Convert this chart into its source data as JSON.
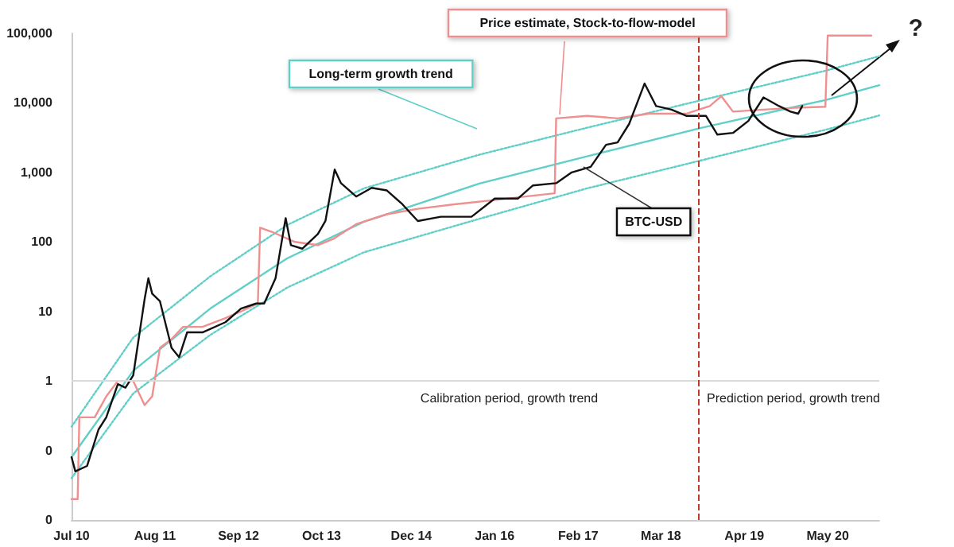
{
  "chart_data": {
    "type": "line",
    "marker": "none",
    "grid": false,
    "log": "y",
    "xlim": [
      "2010-07-01",
      "2021-01-01"
    ],
    "xticks": [
      {
        "value": "2010-07-01",
        "label": "Jul 10"
      },
      {
        "value": "2011-08-01",
        "label": "Aug 11"
      },
      {
        "value": "2012-09-01",
        "label": "Sep 12"
      },
      {
        "value": "2013-10-01",
        "label": "Oct 13"
      },
      {
        "value": "2014-12-01",
        "label": "Dec 14"
      },
      {
        "value": "2016-01-01",
        "label": "Jan 16"
      },
      {
        "value": "2017-02-01",
        "label": "Feb 17"
      },
      {
        "value": "2018-03-01",
        "label": "Mar 18"
      },
      {
        "value": "2019-04-01",
        "label": "Apr 19"
      },
      {
        "value": "2020-05-01",
        "label": "May 20"
      }
    ],
    "ylim": [
      0.01,
      100000
    ],
    "yticks": [
      {
        "value": 0.01,
        "label": "0"
      },
      {
        "value": 0.1,
        "label": "0"
      },
      1,
      10,
      {
        "value": 100,
        "label": "100"
      },
      {
        "value": 1000,
        "label": "1,000"
      },
      {
        "value": 10000,
        "label": "10,000"
      },
      {
        "value": 100000,
        "label": "100,000"
      }
    ],
    "series": [
      {
        "color": "#5fcfc8",
        "line_style": "dotted",
        "x": [
          "2010-07-01",
          "2011-04-20",
          "2012-04-20",
          "2013-04-20",
          "2014-04-20",
          "2015-10-20",
          "2017-03-15",
          "2018-09-12",
          "2020-04-20",
          "2021-01-01"
        ],
        "values": [
          0.22,
          4.2,
          32,
          175,
          590,
          1800,
          4400,
          11000,
          29000,
          47000
        ]
      },
      {
        "name": "Long-term growth trend",
        "color": "#5fcfc8",
        "line_style": "solid",
        "x": [
          "2010-07-01",
          "2011-04-20",
          "2012-04-20",
          "2013-04-20",
          "2014-04-20",
          "2015-10-20",
          "2017-03-15",
          "2018-09-12",
          "2020-04-20",
          "2021-01-01"
        ],
        "values": [
          0.08,
          1.4,
          11,
          58,
          195,
          690,
          1700,
          4400,
          11000,
          18000
        ]
      },
      {
        "color": "#5fcfc8",
        "line_style": "dotted",
        "x": [
          "2010-07-01",
          "2011-04-20",
          "2012-04-20",
          "2013-04-20",
          "2014-04-20",
          "2015-10-20",
          "2017-03-15",
          "2018-09-12",
          "2020-04-20",
          "2021-01-01"
        ],
        "values": [
          0.04,
          0.66,
          4.6,
          22,
          71,
          215,
          590,
          1500,
          4100,
          6600
        ]
      },
      {
        "name": "Price estimate, Stock-to-flow-model",
        "color": "#ef8f8f",
        "line_style": "solid",
        "x": [
          "2010-07-01",
          "2010-07-30",
          "2010-08-07",
          "2010-10-19",
          "2010-12-13",
          "2011-02-06",
          "2011-04-20",
          "2011-06-13",
          "2011-07-19",
          "2011-08-25",
          "2011-10-19",
          "2011-12-13",
          "2012-03-14",
          "2012-07-01",
          "2012-09-13",
          "2012-12-02",
          "2012-12-13",
          "2013-02-06",
          "2013-05-27",
          "2013-09-13",
          "2013-11-24",
          "2014-03-14",
          "2014-08-07",
          "2015-01-01",
          "2015-07-01",
          "2016-01-01",
          "2016-05-27",
          "2016-10-12",
          "2016-10-19",
          "2017-03-15",
          "2017-08-07",
          "2018-01-01",
          "2018-07-01",
          "2018-10-19",
          "2018-12-13",
          "2019-02-06",
          "2019-07-01",
          "2019-11-24",
          "2020-04-20",
          "2020-05-01",
          "2020-11-24"
        ],
        "values": [
          0.02,
          0.02,
          0.3,
          0.3,
          0.6,
          1.0,
          1.0,
          0.45,
          0.6,
          3,
          4,
          6,
          6,
          8,
          10,
          13,
          160,
          140,
          100,
          90,
          110,
          180,
          250,
          300,
          350,
          400,
          450,
          500,
          6000,
          6500,
          6000,
          7000,
          7000,
          9000,
          12500,
          7500,
          8000,
          8500,
          8800,
          93000,
          93000
        ]
      },
      {
        "name": "BTC-USD",
        "color": "#111111",
        "line_style": "solid",
        "x": [
          "2010-07-01",
          "2010-07-19",
          "2010-09-13",
          "2010-11-06",
          "2010-12-13",
          "2011-02-06",
          "2011-03-14",
          "2011-04-20",
          "2011-06-13",
          "2011-07-01",
          "2011-07-19",
          "2011-08-25",
          "2011-10-19",
          "2011-11-24",
          "2012-01-01",
          "2012-03-14",
          "2012-07-01",
          "2012-09-13",
          "2012-11-24",
          "2013-01-01",
          "2013-02-24",
          "2013-04-13",
          "2013-05-08",
          "2013-07-01",
          "2013-09-13",
          "2013-10-19",
          "2013-12-02",
          "2014-01-01",
          "2014-03-14",
          "2014-05-27",
          "2014-08-07",
          "2014-10-19",
          "2015-01-01",
          "2015-04-20",
          "2015-09-13",
          "2016-01-01",
          "2016-04-20",
          "2016-07-01",
          "2016-10-19",
          "2017-01-01",
          "2017-04-01",
          "2017-06-13",
          "2017-08-07",
          "2017-10-01",
          "2017-12-13",
          "2018-02-06",
          "2018-04-20",
          "2018-07-01",
          "2018-10-01",
          "2018-11-24",
          "2019-02-06",
          "2019-04-20",
          "2019-07-01",
          "2019-09-13",
          "2019-11-06",
          "2019-12-13",
          "2020-01-01"
        ],
        "values": [
          0.08,
          0.05,
          0.06,
          0.2,
          0.3,
          0.9,
          0.8,
          1.2,
          15,
          30,
          18,
          14,
          3,
          2.2,
          5,
          5,
          7,
          11,
          13,
          13,
          30,
          220,
          90,
          80,
          130,
          200,
          1100,
          700,
          450,
          600,
          550,
          350,
          200,
          230,
          230,
          420,
          420,
          650,
          700,
          1000,
          1200,
          2500,
          2700,
          5000,
          19000,
          9000,
          8000,
          6500,
          6500,
          3500,
          3700,
          5500,
          12000,
          9000,
          7500,
          7000,
          9000
        ]
      }
    ],
    "ref_lines": [
      {
        "axis": "y",
        "value": 1,
        "color": "#d9d9d9",
        "line_style": "solid"
      },
      {
        "axis": "x",
        "value": "2018-08-28",
        "color": "#c0392b",
        "line_style": "dashed"
      }
    ],
    "annotations": [
      {
        "text": "Calibration period, growth trend",
        "x": "2016-03-10",
        "y": 1
      },
      {
        "text": "Prediction period, growth trend",
        "x": "2019-11-20",
        "y": 1
      },
      "?"
    ]
  }
}
